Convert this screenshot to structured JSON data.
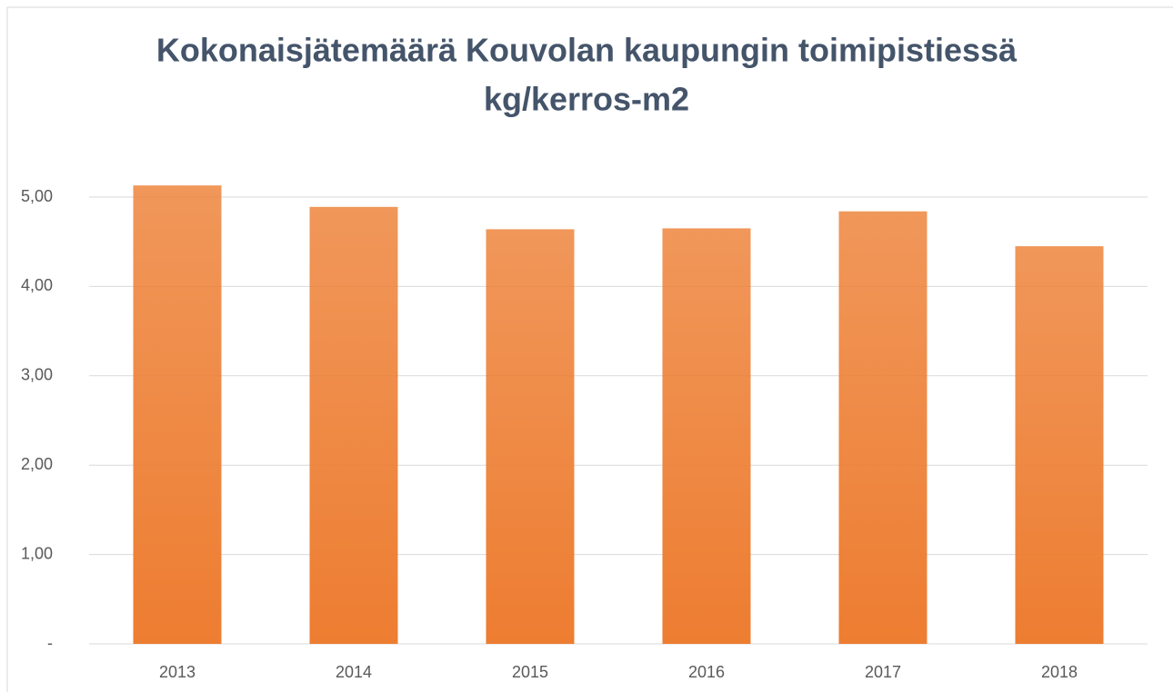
{
  "chart_data": {
    "type": "bar",
    "title": [
      "Kokonaisjätemäärä Kouvolan kaupungin toimipistiessä",
      "kg/kerros-m2"
    ],
    "categories": [
      "2013",
      "2014",
      "2015",
      "2016",
      "2017",
      "2018"
    ],
    "values": [
      5.13,
      4.89,
      4.64,
      4.65,
      4.84,
      4.45
    ],
    "color": "#ed7d31",
    "ylim": [
      0,
      5.4
    ],
    "yticks": [
      {
        "value": 0,
        "label": "-"
      },
      {
        "value": 1,
        "label": "1,00"
      },
      {
        "value": 2,
        "label": "2,00"
      },
      {
        "value": 3,
        "label": "3,00"
      },
      {
        "value": 4,
        "label": "4,00"
      },
      {
        "value": 5,
        "label": "5,00"
      }
    ],
    "grid": true
  }
}
